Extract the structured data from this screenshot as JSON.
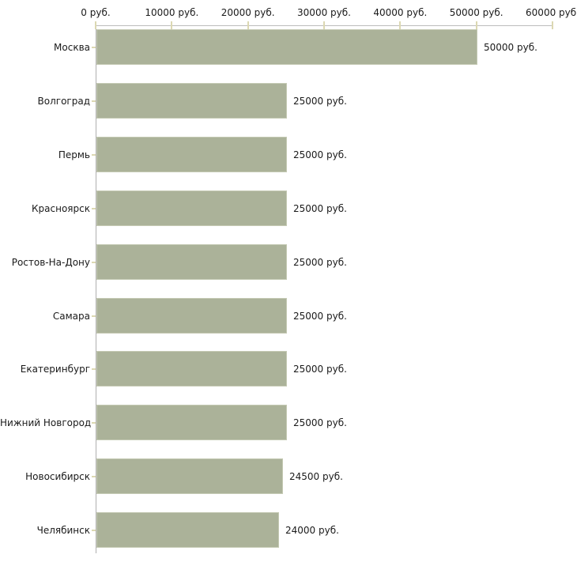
{
  "chart_data": {
    "type": "bar",
    "orientation": "horizontal",
    "title": "",
    "categories": [
      "Москва",
      "Волгоград",
      "Пермь",
      "Красноярск",
      "Ростов-На-Дону",
      "Самара",
      "Екатеринбург",
      "Нижний Новгород",
      "Новосибирск",
      "Челябинск"
    ],
    "values": [
      50000,
      25000,
      25000,
      25000,
      25000,
      25000,
      25000,
      25000,
      24500,
      24000
    ],
    "value_labels": [
      "50000 руб.",
      "25000 руб.",
      "25000 руб.",
      "25000 руб.",
      "25000 руб.",
      "25000 руб.",
      "25000 руб.",
      "25000 руб.",
      "24500 руб.",
      "24000 руб."
    ],
    "x_axis": {
      "position": "top",
      "range": [
        0,
        60000
      ],
      "ticks": [
        0,
        10000,
        20000,
        30000,
        40000,
        50000,
        60000
      ],
      "tick_labels": [
        "0 руб.",
        "10000 руб.",
        "20000 руб.",
        "30000 руб.",
        "40000 руб.",
        "50000 руб.",
        "60000 руб."
      ]
    },
    "grid": false,
    "legend": false,
    "styles": {
      "bar_color": "#abb299",
      "bar_border_color": "#c5cab4",
      "axis_line_color": "#bcbcbc",
      "tick_mark_color": "#dcd8b2",
      "text_color": "#1a1a1a",
      "background_color": "#ffffff"
    }
  }
}
